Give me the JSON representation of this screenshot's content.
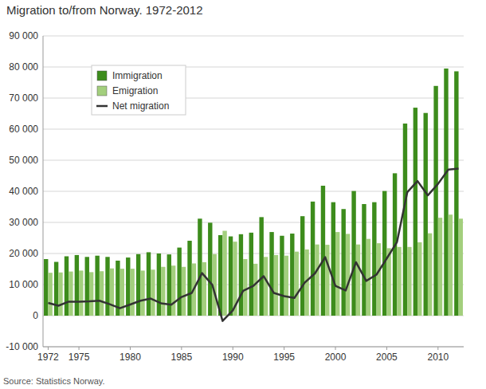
{
  "chart_data": {
    "type": "bar",
    "title": "Migration to/from Norway. 1972-2012",
    "source": "Source: Statistics Norway.",
    "categories": [
      "1972",
      null,
      null,
      "1975",
      null,
      null,
      null,
      null,
      "1980",
      null,
      null,
      null,
      null,
      "1985",
      null,
      null,
      null,
      null,
      "1990",
      null,
      null,
      null,
      null,
      "1995",
      null,
      null,
      null,
      null,
      "2000",
      null,
      null,
      null,
      null,
      "2005",
      null,
      null,
      null,
      null,
      "2010",
      null,
      null
    ],
    "series": [
      {
        "name": "Immigration",
        "type": "bar",
        "color": "#3d8c1c",
        "values": [
          18200,
          17300,
          19100,
          19500,
          18900,
          19300,
          18900,
          17700,
          18700,
          19800,
          20400,
          20000,
          19700,
          21900,
          24100,
          31200,
          29900,
          25900,
          25500,
          26200,
          26700,
          31700,
          26900,
          25700,
          26400,
          32000,
          36700,
          41800,
          36500,
          34300,
          40100,
          35900,
          36500,
          40100,
          45800,
          61800,
          66900,
          65200,
          73900,
          79500,
          78600
        ]
      },
      {
        "name": "Emigration",
        "type": "bar",
        "color": "#a3cf7d",
        "values": [
          13800,
          13900,
          14200,
          14500,
          14000,
          14300,
          15200,
          15100,
          15100,
          14500,
          14800,
          15700,
          16100,
          15700,
          16800,
          17200,
          19800,
          27300,
          23800,
          18200,
          16700,
          18900,
          19500,
          19300,
          20600,
          21300,
          22900,
          22800,
          26900,
          26300,
          22900,
          24700,
          23300,
          21700,
          22100,
          22100,
          23600,
          26500,
          31500,
          32500,
          31200
        ]
      },
      {
        "name": "Net migration",
        "type": "line",
        "color": "#333333",
        "values": [
          4100,
          3200,
          4500,
          4500,
          4600,
          4800,
          3700,
          2400,
          3600,
          4800,
          5500,
          4000,
          3500,
          6000,
          7300,
          13700,
          9900,
          -1700,
          1700,
          8000,
          9600,
          12700,
          7300,
          6300,
          5700,
          10600,
          13600,
          18800,
          9600,
          8100,
          17200,
          11200,
          13200,
          18400,
          23700,
          39700,
          43300,
          38700,
          42400,
          47000,
          47300
        ]
      }
    ],
    "ylim": [
      -10000,
      90000
    ],
    "yticks": [
      {
        "value": -10000,
        "label": "-10 000"
      },
      0,
      {
        "value": 10000,
        "label": "10 000"
      },
      {
        "value": 20000,
        "label": "20 000"
      },
      {
        "value": 30000,
        "label": "30 000"
      },
      {
        "value": 40000,
        "label": "40 000"
      },
      {
        "value": 50000,
        "label": "50 000"
      },
      {
        "value": 60000,
        "label": "60 000"
      },
      {
        "value": 70000,
        "label": "70 000"
      },
      {
        "value": 80000,
        "label": "80 000"
      },
      {
        "value": 90000,
        "label": "90 000"
      }
    ],
    "grid": true,
    "legend": "top-left"
  }
}
